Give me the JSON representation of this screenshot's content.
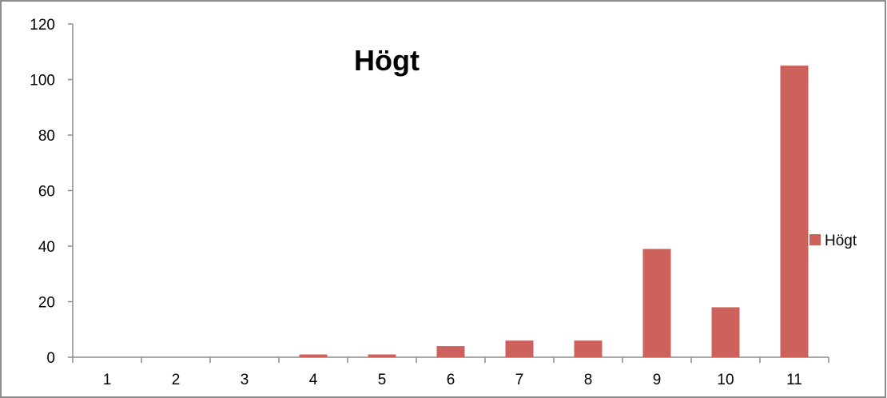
{
  "chart_data": {
    "type": "bar",
    "title": "Högt",
    "xlabel": "",
    "ylabel": "",
    "categories": [
      "1",
      "2",
      "3",
      "4",
      "5",
      "6",
      "7",
      "8",
      "9",
      "10",
      "11"
    ],
    "series": [
      {
        "name": "Högt",
        "color": "#CD615C",
        "values": [
          0,
          0,
          0,
          1,
          1,
          4,
          6,
          6,
          39,
          18,
          105
        ]
      }
    ],
    "ylim": [
      0,
      120
    ],
    "yticks": [
      "0",
      "20",
      "40",
      "60",
      "80",
      "100",
      "120"
    ],
    "grid": false,
    "legend": {
      "position": "right",
      "entries": [
        "Högt"
      ]
    }
  }
}
